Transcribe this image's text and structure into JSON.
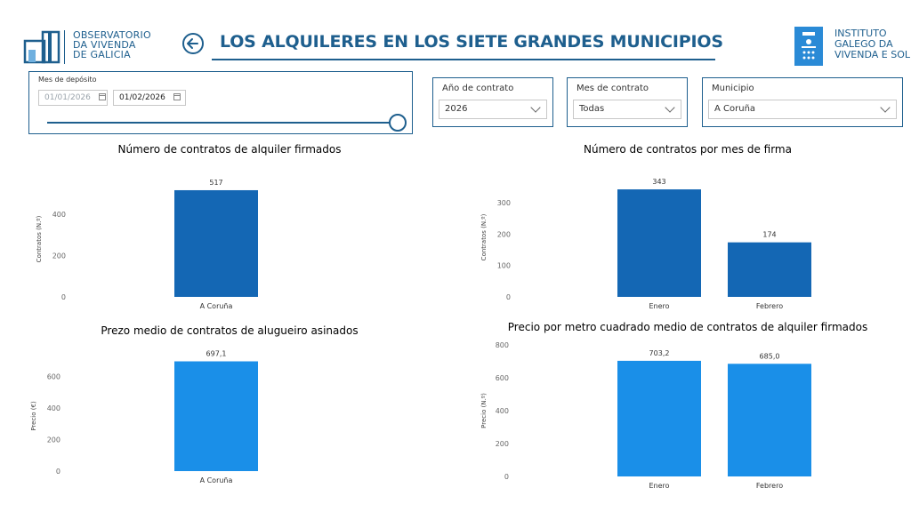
{
  "header": {
    "ovg_logo_lines": [
      "OBSERVATORIO",
      "DA VIVENDA",
      "DE GALICIA"
    ],
    "title": "LOS ALQUILERES EN LOS SIETE GRANDES MUNICIPIOS",
    "igvs_logo_lines": [
      "INSTITUTO",
      "GALEGO DA",
      "VIVENDA E SOL"
    ]
  },
  "filters": {
    "deposit_month": {
      "label": "Mes de depósito",
      "start": "01/01/2026",
      "end": "01/02/2026",
      "slider_value": 1.0
    },
    "contract_year": {
      "label": "Año de contrato",
      "value": "2026"
    },
    "contract_month": {
      "label": "Mes de contrato",
      "value": "Todas"
    },
    "municipality": {
      "label": "Municipio",
      "value": "A Coruña"
    }
  },
  "colors": {
    "brand": "#1e5f8e",
    "bar_dark": "#1467b4",
    "bar_light": "#1a8fe8"
  },
  "chart_data": [
    {
      "type": "bar",
      "title": "Número de contratos de alquiler firmados",
      "ylabel": "Contratos (N.º)",
      "categories": [
        "A Coruña"
      ],
      "values": [
        517
      ],
      "value_labels": [
        "517"
      ],
      "yticks": [
        0,
        200,
        400
      ],
      "ylim": [
        0,
        560
      ],
      "color": "#1467b4",
      "grid": false
    },
    {
      "type": "bar",
      "title": "Número de contratos por mes de firma",
      "ylabel": "Contratos (N.º)",
      "categories": [
        "Enero",
        "Febrero"
      ],
      "values": [
        343,
        174
      ],
      "value_labels": [
        "343",
        "174"
      ],
      "yticks": [
        0,
        100,
        200,
        300
      ],
      "ylim": [
        0,
        380
      ],
      "color": "#1467b4",
      "grid": false
    },
    {
      "type": "bar",
      "title": "Prezo medio de contratos de alugueiro asinados",
      "ylabel": "Precio (€)",
      "categories": [
        "A Coruña"
      ],
      "values": [
        697.1
      ],
      "value_labels": [
        "697,1"
      ],
      "yticks": [
        0,
        200,
        400,
        600
      ],
      "ylim": [
        0,
        700
      ],
      "color": "#1a8fe8",
      "grid": false
    },
    {
      "type": "bar",
      "title": "Precio por metro cuadrado medio de contratos de alquiler firmados",
      "ylabel": "Precio (N.º)",
      "categories": [
        "Enero",
        "Febrero"
      ],
      "values": [
        703.2,
        685.0
      ],
      "value_labels": [
        "703,2",
        "685,0"
      ],
      "yticks": [
        0,
        200,
        400,
        600,
        800
      ],
      "ylim": [
        0,
        800
      ],
      "color": "#1a8fe8",
      "grid": false
    }
  ]
}
